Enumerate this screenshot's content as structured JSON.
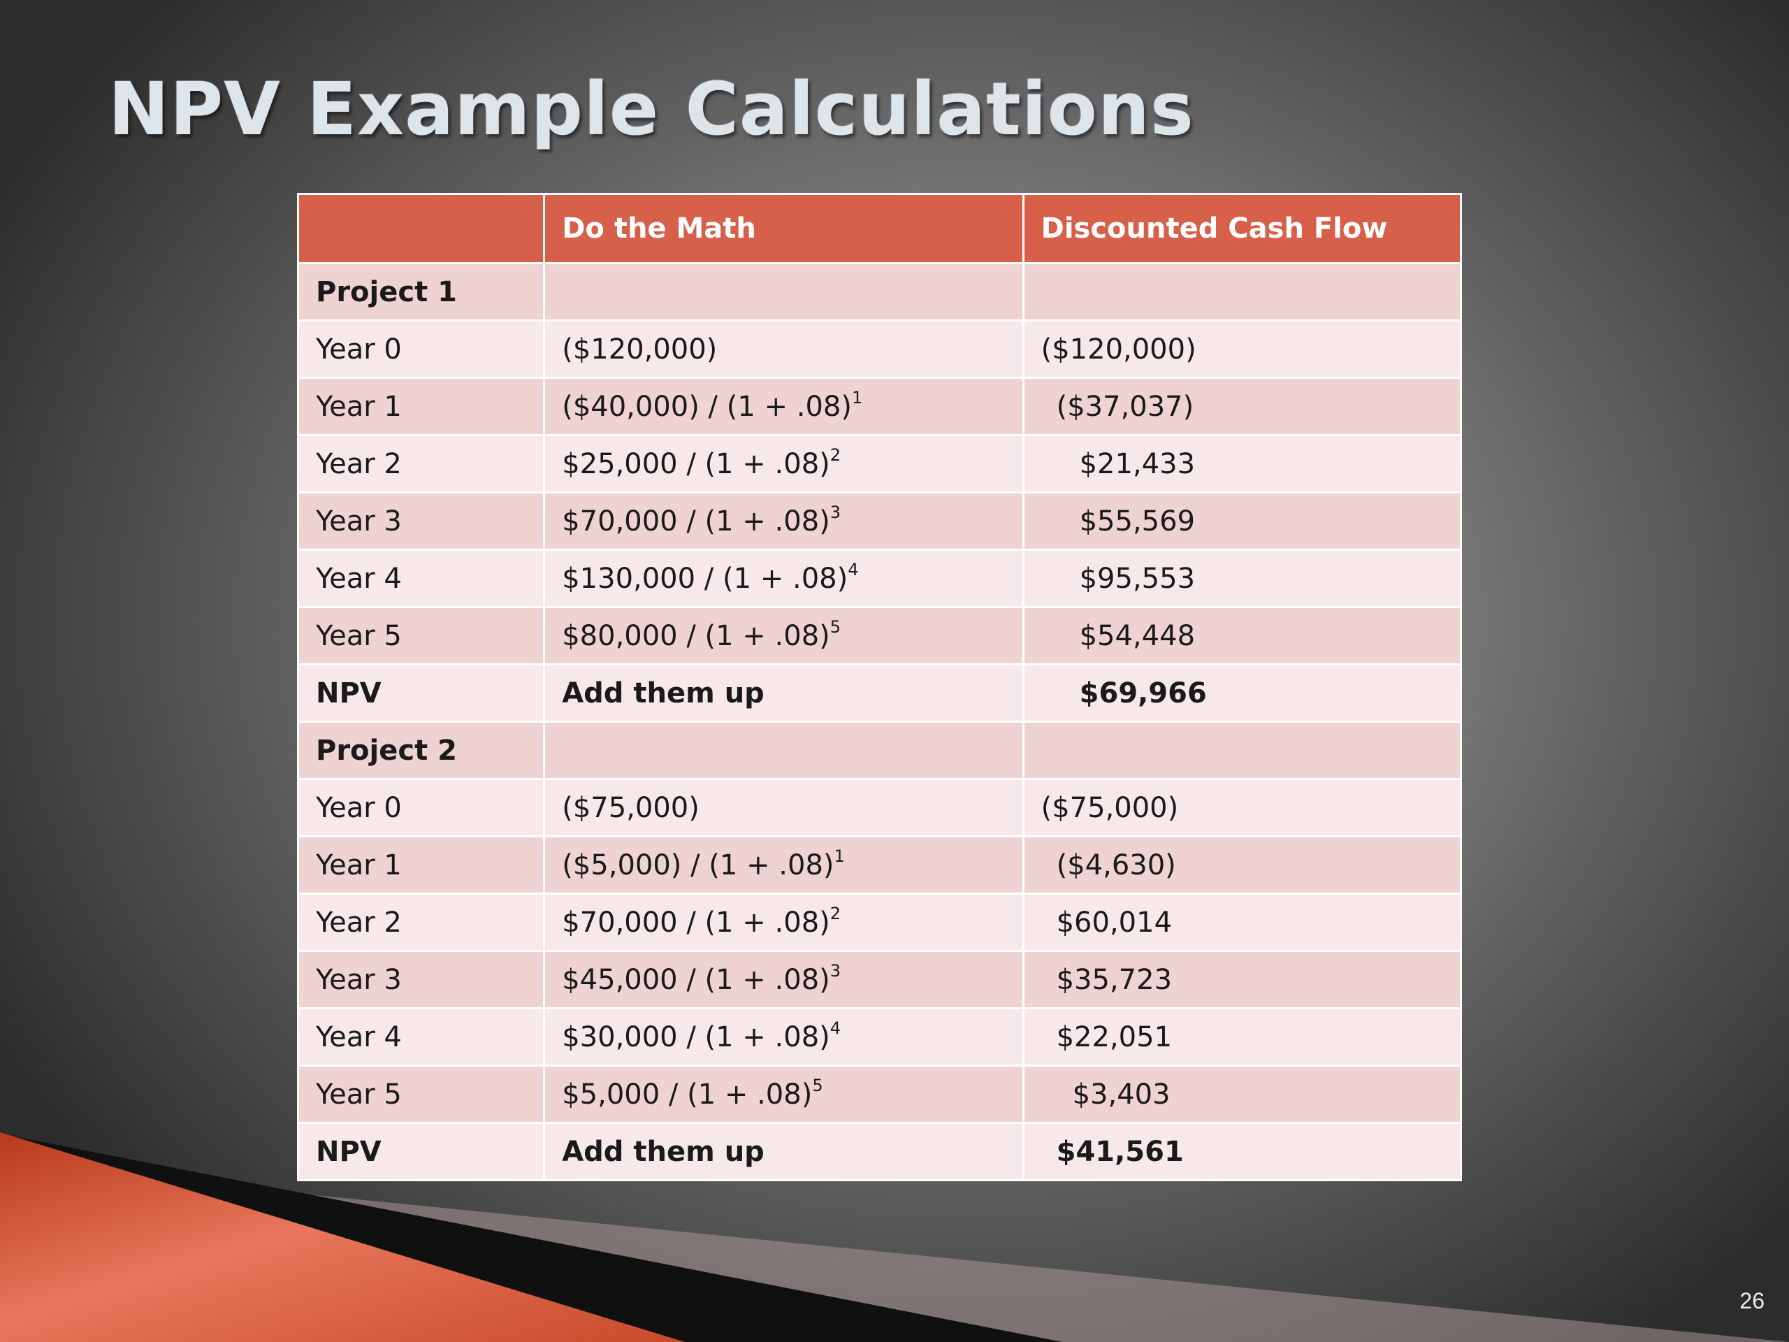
{
  "slide": {
    "title": "NPV Example Calculations",
    "number": "26"
  },
  "table": {
    "headers": [
      "",
      "Do the Math",
      "Discounted Cash Flow"
    ],
    "rows": [
      {
        "label": "Project 1",
        "math": "",
        "exp": "",
        "cash": "",
        "bold": true
      },
      {
        "label": "Year 0",
        "math": "($120,000)",
        "exp": "",
        "cash": "($120,000)"
      },
      {
        "label": "Year 1",
        "math": "($40,000) / (1 + .08)",
        "exp": "1",
        "cash": "($37,037)"
      },
      {
        "label": "Year 2",
        "math": "$25,000 / (1 + .08)",
        "exp": "2",
        "cash": "$21,433"
      },
      {
        "label": "Year 3",
        "math": "$70,000 / (1 + .08)",
        "exp": "3",
        "cash": "$55,569"
      },
      {
        "label": "Year 4",
        "math": "$130,000 / (1 + .08)",
        "exp": "4",
        "cash": "$95,553"
      },
      {
        "label": "Year 5",
        "math": "$80,000 / (1 + .08)",
        "exp": "5",
        "cash": "$54,448"
      },
      {
        "label": "NPV",
        "math": "Add them up",
        "exp": "",
        "cash": "$69,966",
        "bold": true
      },
      {
        "label": "Project 2",
        "math": "",
        "exp": "",
        "cash": "",
        "bold": true
      },
      {
        "label": "Year 0",
        "math": "($75,000)",
        "exp": "",
        "cash": "($75,000)"
      },
      {
        "label": "Year 1",
        "math": "($5,000) / (1 + .08)",
        "exp": "1",
        "cash": "($4,630)"
      },
      {
        "label": "Year 2",
        "math": "$70,000 / (1 + .08)",
        "exp": "2",
        "cash": "$60,014"
      },
      {
        "label": "Year 3",
        "math": "$45,000 / (1 + .08)",
        "exp": "3",
        "cash": "$35,723"
      },
      {
        "label": "Year 4",
        "math": "$30,000 / (1 + .08)",
        "exp": "4",
        "cash": "$22,051"
      },
      {
        "label": "Year 5",
        "math": "$5,000 / (1 + .08)",
        "exp": "5",
        "cash": "$3,403"
      },
      {
        "label": "NPV",
        "math": "Add them up",
        "exp": "",
        "cash": "$41,561",
        "bold": true
      }
    ]
  },
  "colors": {
    "header_fill": "#d6604a",
    "row_dark": "#efd3d2",
    "row_light": "#f7e9e9",
    "swoosh": "#d4502e"
  }
}
